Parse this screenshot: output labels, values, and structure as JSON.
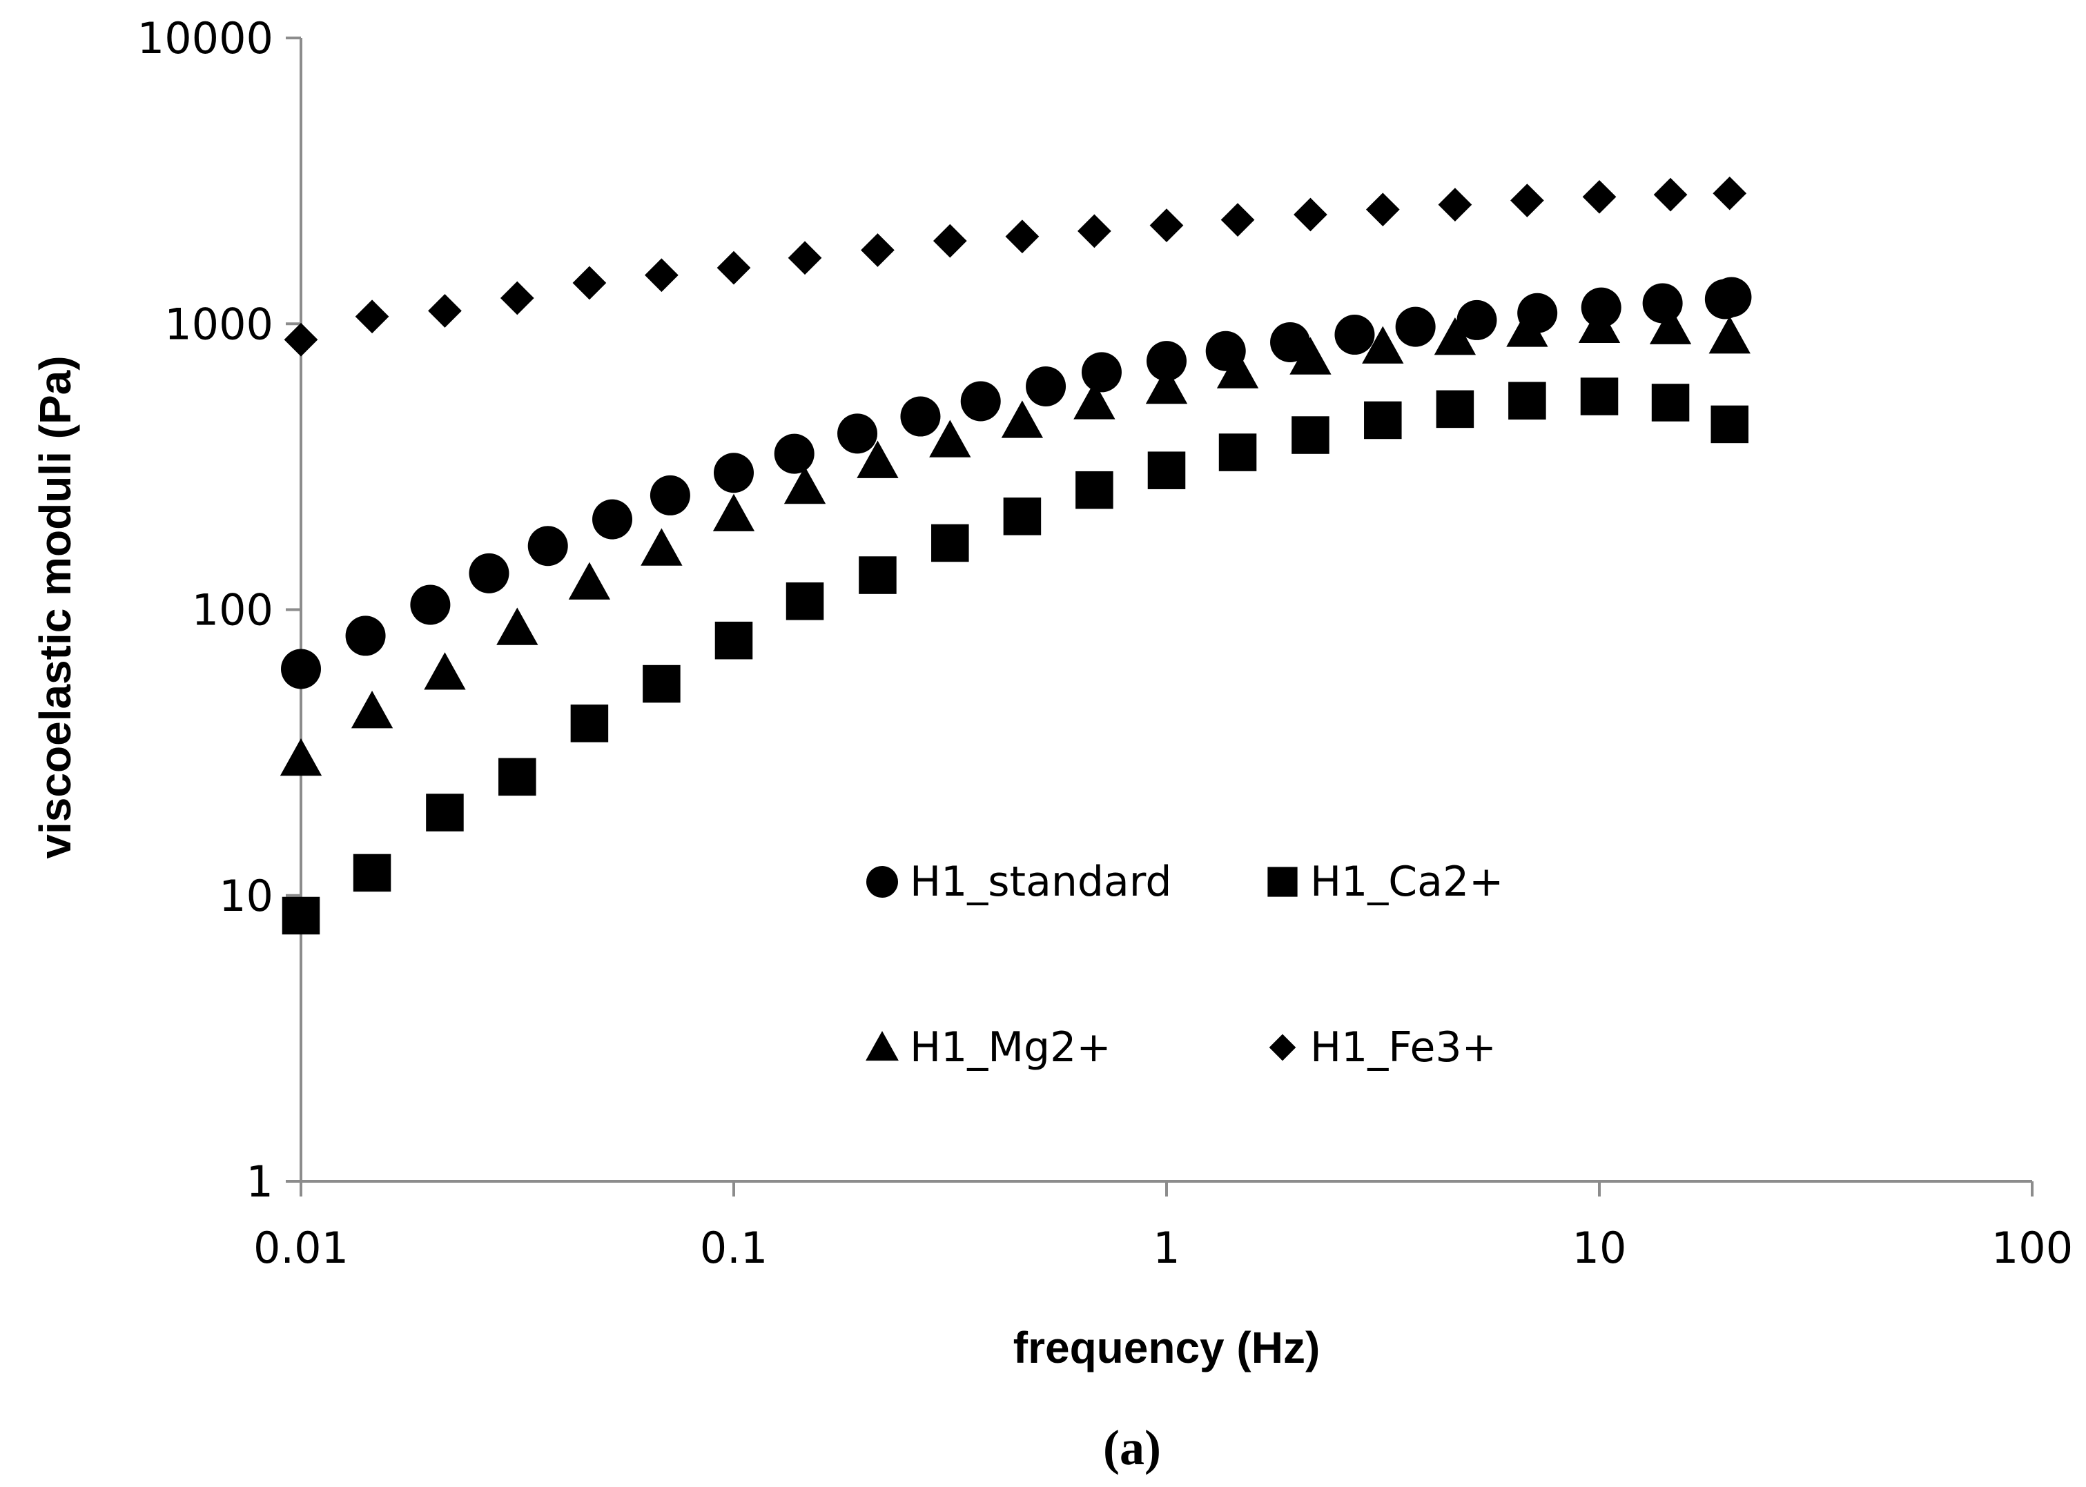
{
  "chart_data": {
    "type": "scatter",
    "title": "",
    "xlabel": "frequency (Hz)",
    "ylabel": "viscoelastic moduli (Pa)",
    "x_scale": "log",
    "y_scale": "log",
    "xlim": [
      0.01,
      100
    ],
    "ylim": [
      1,
      10000
    ],
    "x_ticks": [
      0.01,
      0.1,
      1,
      10,
      100
    ],
    "x_tick_labels": [
      "0.01",
      "0.1",
      "1",
      "10",
      "100"
    ],
    "y_ticks": [
      1,
      10,
      100,
      1000,
      10000
    ],
    "y_tick_labels": [
      "1",
      "10",
      "100",
      "1000",
      "10000"
    ],
    "grid": false,
    "legend_position": "center-right inside plot",
    "caption": "(a)",
    "series": [
      {
        "name": "H1_standard",
        "marker": "circle",
        "x": [
          0.01,
          0.0141,
          0.0199,
          0.0272,
          0.0372,
          0.0524,
          0.0713,
          0.1,
          0.138,
          0.193,
          0.27,
          0.372,
          0.526,
          0.708,
          1.0,
          1.37,
          1.93,
          2.72,
          3.76,
          5.21,
          7.19,
          10.1,
          14.0,
          19.5,
          20.2
        ],
        "y": [
          62,
          81,
          104,
          134,
          167,
          207,
          251,
          301,
          351,
          413,
          474,
          536,
          604,
          677,
          741,
          803,
          862,
          916,
          976,
          1030,
          1090,
          1140,
          1180,
          1220,
          1240
        ]
      },
      {
        "name": "H1_Ca2+",
        "marker": "square",
        "x": [
          0.01,
          0.0146,
          0.0215,
          0.0316,
          0.0464,
          0.0681,
          0.1,
          0.146,
          0.215,
          0.316,
          0.464,
          0.681,
          1.0,
          1.46,
          2.15,
          3.16,
          4.64,
          6.81,
          10.0,
          14.6,
          20.0
        ],
        "y": [
          8.5,
          12,
          19.5,
          26,
          40,
          55,
          78,
          107,
          132,
          171,
          212,
          262,
          307,
          355,
          408,
          460,
          503,
          538,
          557,
          530,
          445
        ]
      },
      {
        "name": "H1_Mg2+",
        "marker": "triangle",
        "x": [
          0.01,
          0.0146,
          0.0215,
          0.0316,
          0.0464,
          0.0681,
          0.1,
          0.146,
          0.215,
          0.316,
          0.464,
          0.681,
          1.0,
          1.46,
          2.15,
          3.16,
          4.64,
          6.81,
          10.0,
          14.6,
          20.0
        ],
        "y": [
          30,
          44,
          60,
          86,
          124,
          163,
          215,
          268,
          330,
          390,
          456,
          530,
          600,
          680,
          760,
          830,
          890,
          950,
          980,
          970,
          900
        ]
      },
      {
        "name": "H1_Fe3+",
        "marker": "diamond",
        "x": [
          0.01,
          0.0146,
          0.0215,
          0.0316,
          0.0464,
          0.0681,
          0.1,
          0.146,
          0.215,
          0.316,
          0.464,
          0.681,
          1.0,
          1.46,
          2.15,
          3.16,
          4.64,
          6.81,
          10.0,
          14.6,
          20.0
        ],
        "y": [
          880,
          1060,
          1110,
          1230,
          1390,
          1480,
          1570,
          1700,
          1810,
          1950,
          2020,
          2110,
          2210,
          2310,
          2410,
          2510,
          2610,
          2700,
          2780,
          2830,
          2860
        ]
      }
    ]
  }
}
